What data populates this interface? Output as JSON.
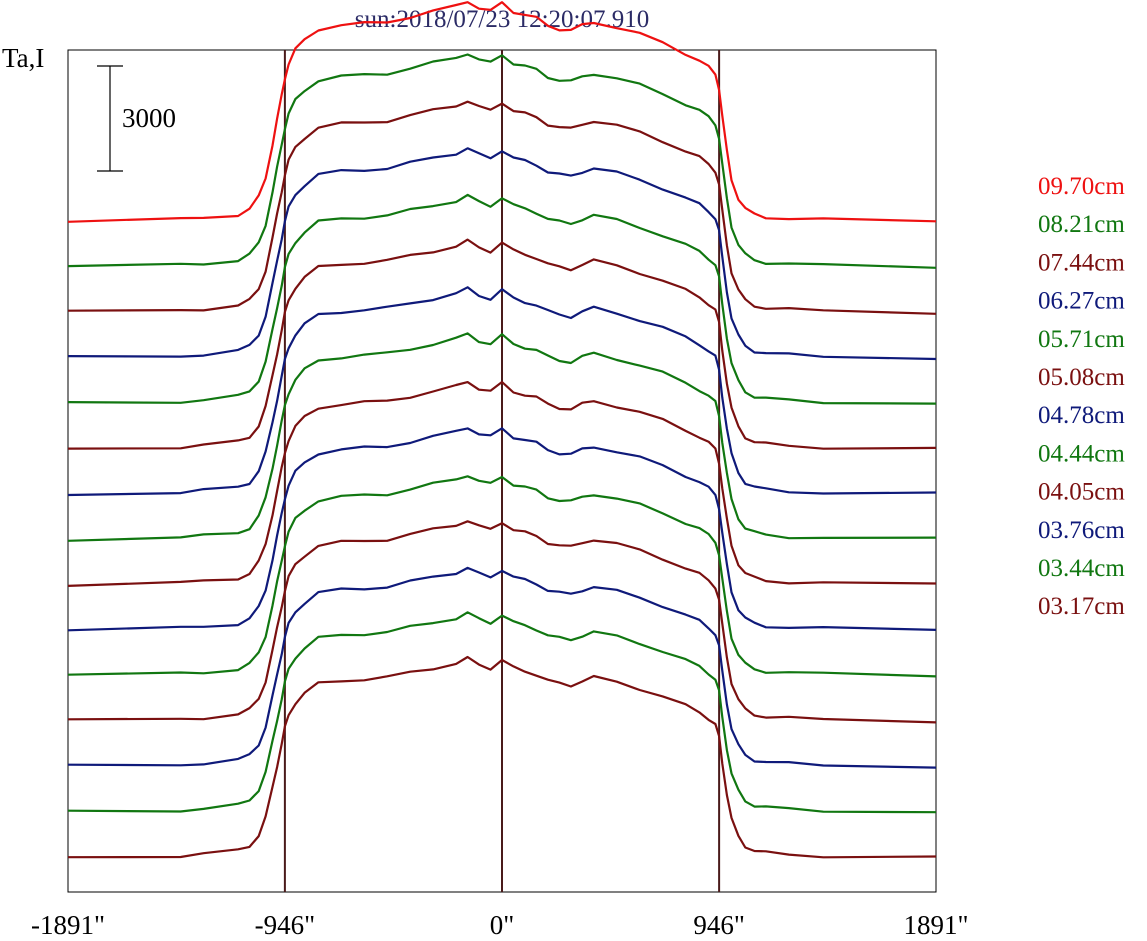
{
  "chart_data": {
    "type": "line",
    "title": "sun:2018/07/23 12:20:07.910",
    "ylabel": "Ta,I",
    "xlabel": "",
    "scale_bar_label": "3000",
    "scale_bar_value": 3000,
    "x_ticks": [
      {
        "value": -1891,
        "label": "-1891\""
      },
      {
        "value": -946,
        "label": "-946\""
      },
      {
        "value": 0,
        "label": "0\""
      },
      {
        "value": 946,
        "label": "946\""
      },
      {
        "value": 1891,
        "label": "1891\""
      }
    ],
    "xlim": [
      -1891,
      1891
    ],
    "vertical_lines": [
      -946,
      0,
      946
    ],
    "grid": false,
    "legend_position": "right",
    "profile": {
      "x": [
        -1891,
        -1400,
        -1300,
        -1150,
        -1100,
        -1060,
        -1030,
        -1000,
        -980,
        -960,
        -946,
        -930,
        -900,
        -860,
        -800,
        -700,
        -600,
        -500,
        -400,
        -300,
        -200,
        -150,
        -100,
        -50,
        0,
        50,
        100,
        150,
        200,
        250,
        300,
        350,
        400,
        500,
        600,
        700,
        800,
        860,
        900,
        930,
        946,
        960,
        980,
        1000,
        1030,
        1060,
        1100,
        1150,
        1250,
        1400,
        1891
      ],
      "values": [
        0,
        50,
        100,
        200,
        350,
        700,
        1250,
        2200,
        2900,
        3600,
        4100,
        4500,
        4900,
        5200,
        5500,
        5600,
        5650,
        5700,
        5850,
        6000,
        6150,
        6300,
        6100,
        6000,
        6250,
        6000,
        5900,
        5800,
        5600,
        5500,
        5450,
        5600,
        5700,
        5550,
        5350,
        5100,
        4800,
        4600,
        4400,
        4200,
        3800,
        3000,
        2000,
        1200,
        650,
        350,
        200,
        130,
        80,
        40,
        0
      ]
    },
    "series": [
      {
        "name": "09.70cm",
        "color": "#ee1111",
        "offset": 13,
        "amplitude": 1.0
      },
      {
        "name": "08.21cm",
        "color": "#117711",
        "offset": 12,
        "amplitude": 0.97
      },
      {
        "name": "07.44cm",
        "color": "#7a1010",
        "offset": 11,
        "amplitude": 0.96
      },
      {
        "name": "06.27cm",
        "color": "#0f1a7a",
        "offset": 10,
        "amplitude": 0.95
      },
      {
        "name": "05.71cm",
        "color": "#117711",
        "offset": 9,
        "amplitude": 0.94
      },
      {
        "name": "05.08cm",
        "color": "#7a1010",
        "offset": 8,
        "amplitude": 0.94
      },
      {
        "name": "04.78cm",
        "color": "#0f1a7a",
        "offset": 7,
        "amplitude": 0.93
      },
      {
        "name": "04.44cm",
        "color": "#117711",
        "offset": 6,
        "amplitude": 0.93
      },
      {
        "name": "04.05cm",
        "color": "#7a1010",
        "offset": 5,
        "amplitude": 0.92
      },
      {
        "name": "03.76cm",
        "color": "#0f1a7a",
        "offset": 4,
        "amplitude": 0.92
      },
      {
        "name": "03.44cm",
        "color": "#117711",
        "offset": 3,
        "amplitude": 0.91
      },
      {
        "name": "03.17cm",
        "color": "#7a1010",
        "offset": 2,
        "amplitude": 0.91
      },
      {
        "name": "",
        "color": "#0f1a7a",
        "offset": 1,
        "amplitude": 0.9
      },
      {
        "name": "",
        "color": "#117711",
        "offset": 0,
        "amplitude": 0.9
      },
      {
        "name": "",
        "color": "#7a1010",
        "offset": -1,
        "amplitude": 0.9
      }
    ]
  }
}
